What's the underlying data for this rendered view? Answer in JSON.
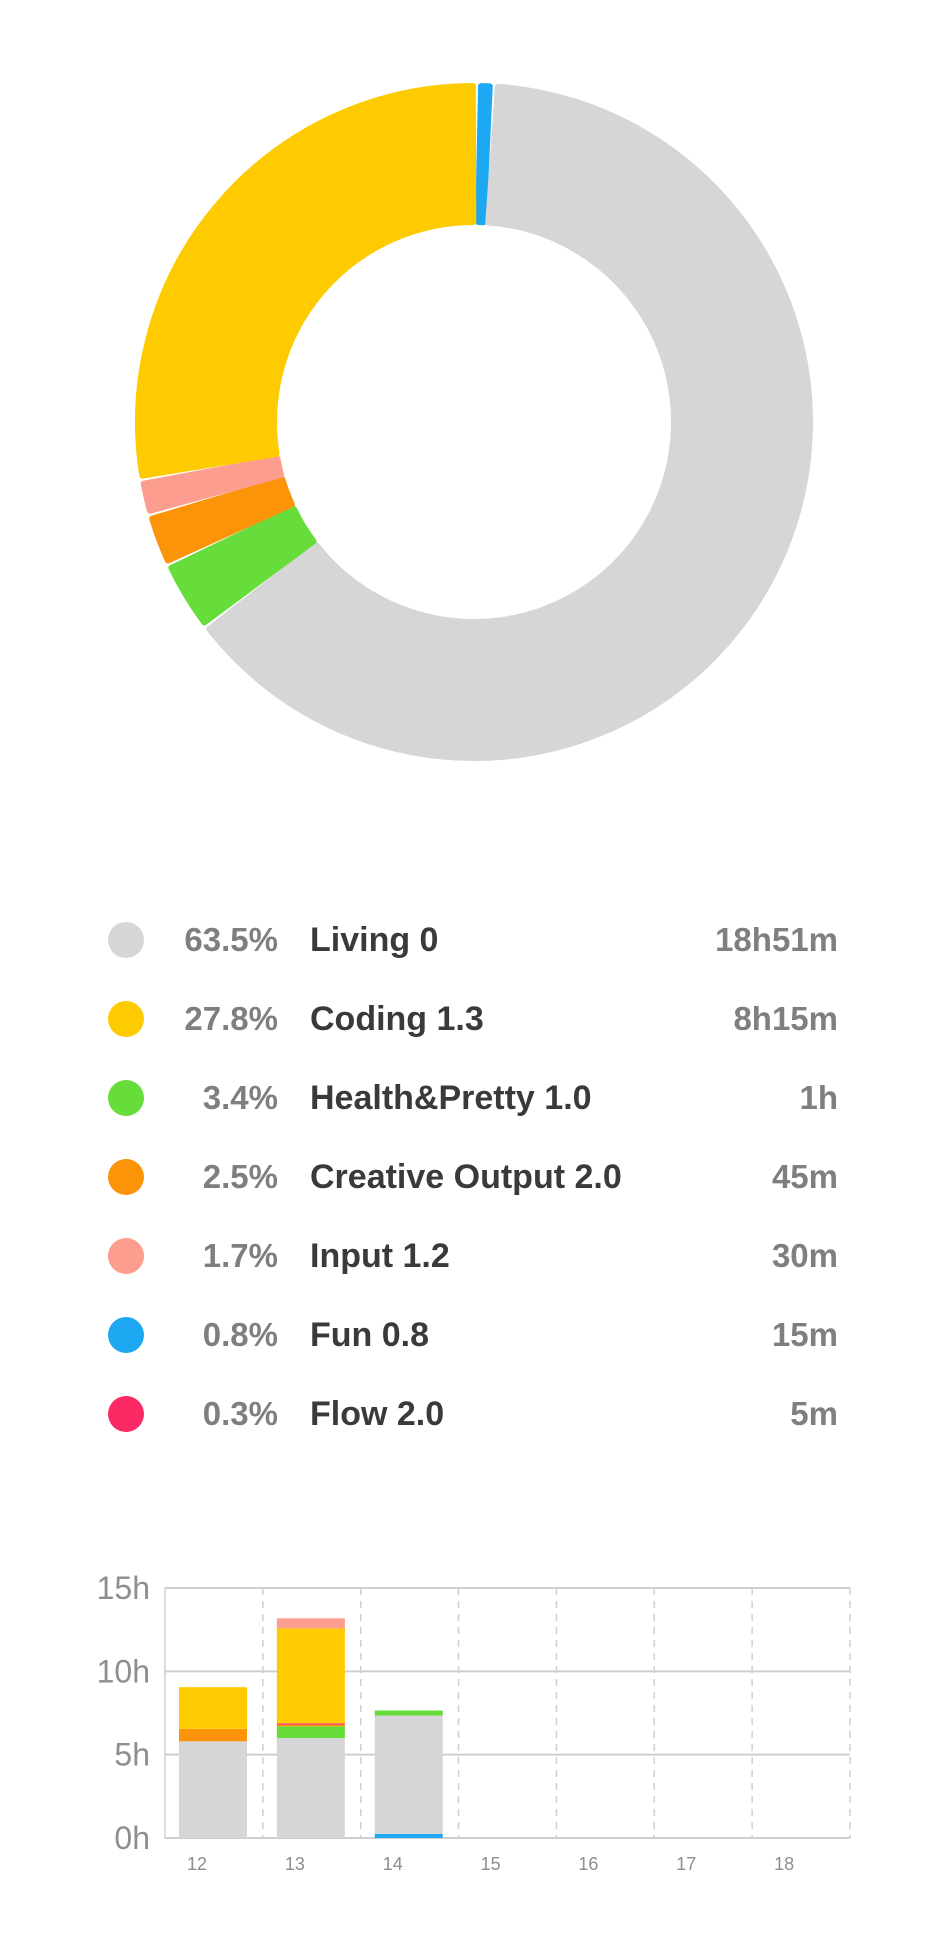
{
  "colors": {
    "living": "#d6d6d6",
    "coding": "#fdcb00",
    "health": "#66dd3a",
    "creative": "#fc9409",
    "input": "#fd9d8f",
    "fun": "#1fa8f2",
    "flow": "#fc2a64"
  },
  "chart_data": [
    {
      "type": "pie",
      "donut": true,
      "slices": [
        {
          "label": "Fun 0.8",
          "percent": 0.8,
          "color": "#1fa8f2"
        },
        {
          "label": "Living 0",
          "percent": 63.5,
          "color": "#d6d6d6"
        },
        {
          "label": "Health&Pretty 1.0",
          "percent": 3.4,
          "color": "#66dd3a"
        },
        {
          "label": "Creative Output 2.0",
          "percent": 2.5,
          "color": "#fc9409"
        },
        {
          "label": "Input 1.2",
          "percent": 1.7,
          "color": "#fd9d8f"
        },
        {
          "label": "Coding 1.3",
          "percent": 27.8,
          "color": "#fdcb00"
        }
      ],
      "legend": [
        {
          "percent": "63.5%",
          "label": "Living 0",
          "duration": "18h51m",
          "color": "#d6d6d6"
        },
        {
          "percent": "27.8%",
          "label": "Coding 1.3",
          "duration": "8h15m",
          "color": "#fdcb00"
        },
        {
          "percent": "3.4%",
          "label": "Health&Pretty 1.0",
          "duration": "1h",
          "color": "#66dd3a"
        },
        {
          "percent": "2.5%",
          "label": "Creative Output 2.0",
          "duration": "45m",
          "color": "#fc9409"
        },
        {
          "percent": "1.7%",
          "label": "Input 1.2",
          "duration": "30m",
          "color": "#fd9d8f"
        },
        {
          "percent": "0.8%",
          "label": "Fun 0.8",
          "duration": "15m",
          "color": "#1fa8f2"
        },
        {
          "percent": "0.3%",
          "label": "Flow 2.0",
          "duration": "5m",
          "color": "#fc2a64"
        }
      ]
    },
    {
      "type": "bar",
      "stacked": true,
      "categories": [
        "12",
        "13",
        "14",
        "15",
        "16",
        "17",
        "18"
      ],
      "ylim": [
        0,
        15
      ],
      "yticks": [
        {
          "value": 0,
          "label": "0h"
        },
        {
          "value": 5,
          "label": "5h"
        },
        {
          "value": 10,
          "label": "10h"
        },
        {
          "value": 15,
          "label": "15h"
        }
      ],
      "series": [
        {
          "name": "Fun 0.8",
          "color": "#1fa8f2",
          "values": [
            0,
            0,
            0.25,
            0,
            0,
            0,
            0
          ]
        },
        {
          "name": "Living 0",
          "color": "#d6d6d6",
          "values": [
            5.8,
            6.0,
            7.1,
            0,
            0,
            0,
            0
          ]
        },
        {
          "name": "Health&Pretty 1.0",
          "color": "#66dd3a",
          "values": [
            0,
            0.7,
            0.3,
            0,
            0,
            0,
            0
          ]
        },
        {
          "name": "Creative Output 2.0",
          "color": "#fc9409",
          "values": [
            0.75,
            0.1,
            0,
            0,
            0,
            0,
            0
          ]
        },
        {
          "name": "Flow 2.0",
          "color": "#fc2a64",
          "values": [
            0,
            0.08,
            0,
            0,
            0,
            0,
            0
          ]
        },
        {
          "name": "Coding 1.3",
          "color": "#fdcb00",
          "values": [
            2.5,
            5.7,
            0,
            0,
            0,
            0,
            0
          ]
        },
        {
          "name": "Input 1.2",
          "color": "#fd9d8f",
          "values": [
            0,
            0.6,
            0,
            0,
            0,
            0,
            0
          ]
        }
      ]
    }
  ]
}
